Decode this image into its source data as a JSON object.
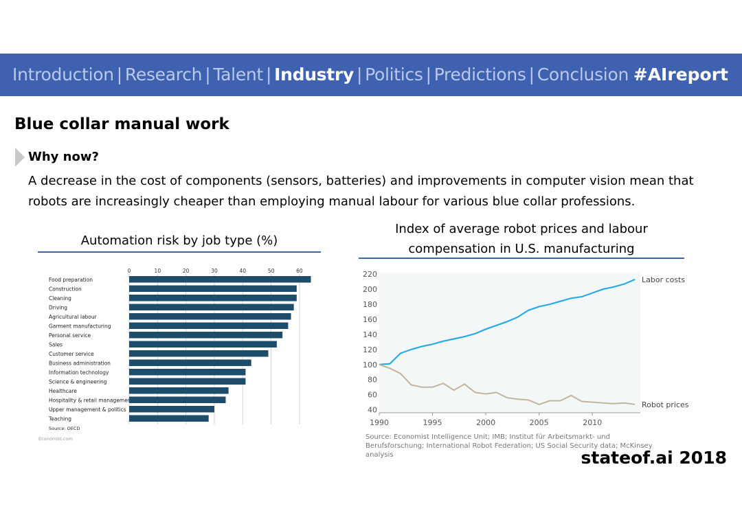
{
  "nav": {
    "items": [
      "Introduction",
      "Research",
      "Talent",
      "Industry",
      "Politics",
      "Predictions",
      "Conclusion"
    ],
    "active_index": 3,
    "hashtag": "#AIreport"
  },
  "slide": {
    "title": "Blue collar manual work",
    "subheading": "Why now?",
    "body": "A decrease in the cost of components (sensors, batteries) and improvements in computer vision mean that robots are increasingly cheaper than employing manual labour for various blue collar professions."
  },
  "footer": "stateof.ai 2018",
  "colors": {
    "nav_bg": "#3f62b0",
    "bar": "#1e4d6b",
    "labor": "#29abe2",
    "robot": "#c2b59b"
  },
  "chart_data": [
    {
      "type": "bar",
      "orientation": "horizontal",
      "title": "Automation risk by job type (%)",
      "categories": [
        "Food preparation",
        "Construction",
        "Cleaning",
        "Driving",
        "Agricultural labour",
        "Garment manufacturing",
        "Personal service",
        "Sales",
        "Customer service",
        "Business administration",
        "Information technology",
        "Science & engineering",
        "Healthcare",
        "Hospitality & retail management",
        "Upper management & politics",
        "Teaching"
      ],
      "values": [
        64,
        59,
        59,
        58,
        57,
        56,
        54,
        52,
        49,
        43,
        41,
        41,
        35,
        34,
        30,
        28
      ],
      "xticks": [
        0,
        10,
        20,
        30,
        40,
        50,
        60
      ],
      "xlim": [
        0,
        68
      ],
      "source": "Source: OECD",
      "credit": "Economist.com"
    },
    {
      "type": "line",
      "title": "Index of average robot prices and labour compensation in U.S. manufacturing",
      "x": [
        1990,
        1991,
        1992,
        1993,
        1994,
        1995,
        1996,
        1997,
        1998,
        1999,
        2000,
        2001,
        2002,
        2003,
        2004,
        2005,
        2006,
        2007,
        2008,
        2009,
        2010,
        2011,
        2012,
        2013,
        2014
      ],
      "series": [
        {
          "name": "Labor costs",
          "values": [
            100,
            101,
            115,
            120,
            124,
            127,
            131,
            134,
            137,
            141,
            147,
            152,
            157,
            163,
            172,
            177,
            180,
            184,
            188,
            190,
            195,
            200,
            203,
            207,
            213
          ]
        },
        {
          "name": "Robot prices",
          "values": [
            100,
            95,
            88,
            73,
            70,
            70,
            75,
            66,
            74,
            63,
            61,
            63,
            56,
            54,
            53,
            47,
            52,
            52,
            59,
            51,
            50,
            49,
            48,
            49,
            47
          ]
        }
      ],
      "xticks": [
        1990,
        1995,
        2000,
        2005,
        2010
      ],
      "yticks": [
        40,
        60,
        80,
        100,
        120,
        140,
        160,
        180,
        200,
        220
      ],
      "xlim": [
        1990,
        2014.5
      ],
      "ylim": [
        36,
        222
      ],
      "source": "Source: Economist Intelligence Unit; IMB; Institut für Arbeitsmarkt- und Berufsforschung; International Robot Federation; US Social Security data; McKinsey analysis"
    }
  ]
}
